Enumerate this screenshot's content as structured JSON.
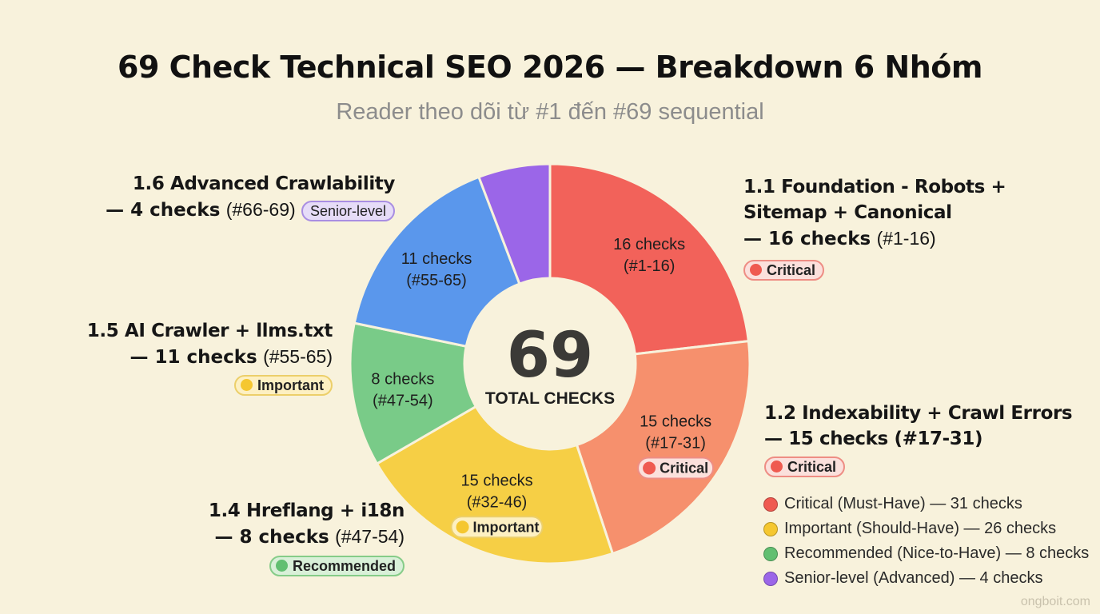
{
  "title": "69 Check Technical SEO 2026 — Breakdown 6 Nhóm",
  "subtitle": "Reader theo dõi từ #1 đến #69 sequential",
  "chart_data": {
    "type": "pie",
    "variant": "donut",
    "center_value": "69",
    "center_label": "TOTAL CHECKS",
    "slices": [
      {
        "id": "1.1",
        "value": 16,
        "label": "16 checks",
        "range": "(#1-16)",
        "color": "#f2625a"
      },
      {
        "id": "1.2",
        "value": 15,
        "label": "15 checks",
        "range": "(#17-31)",
        "color": "#f6906d",
        "badge": "Critical",
        "badge_level": "critical"
      },
      {
        "id": "1.3",
        "value": 15,
        "label": "15 checks",
        "range": "(#32-46)",
        "color": "#f6cf45",
        "badge": "Important",
        "badge_level": "important"
      },
      {
        "id": "1.4",
        "value": 8,
        "label": "8 checks",
        "range": "(#47-54)",
        "color": "#79cb88"
      },
      {
        "id": "1.5",
        "value": 11,
        "label": "11 checks",
        "range": "(#55-65)",
        "color": "#5a97ec"
      },
      {
        "id": "1.6",
        "value": 4,
        "label": "",
        "range": "",
        "color": "#9b66e8"
      }
    ]
  },
  "callouts": {
    "c11": {
      "head_l1": "1.1 Foundation - Robots +",
      "head_l2": "Sitemap + Canonical",
      "count": "— 16 checks",
      "range": "(#1-16)",
      "badge": "Critical"
    },
    "c12": {
      "head_l1": "1.2 Indexability + Crawl Errors",
      "count": "— 15 checks (#17-31)",
      "badge": "Critical"
    },
    "c14": {
      "head_l1": "1.4 Hreflang + i18n",
      "count": "— 8 checks",
      "range": "(#47-54)",
      "badge": "Recommended"
    },
    "c15": {
      "head_l1": "1.5 AI Crawler + llms.txt",
      "count": "— 11 checks",
      "range": "(#55-65)",
      "badge": "Important"
    },
    "c16": {
      "head_l1": "1.6 Advanced Crawlability",
      "count": "— 4 checks",
      "range": "(#66-69)",
      "badge": "Senior-level"
    }
  },
  "legend": [
    {
      "text": "Critical (Must-Have) — 31 checks",
      "color": "#ef5a50"
    },
    {
      "text": "Important (Should-Have) — 26 checks",
      "color": "#f5c730"
    },
    {
      "text": "Recommended (Nice-to-Have) — 8 checks",
      "color": "#62bf71"
    },
    {
      "text": "Senior-level (Advanced) — 4 checks",
      "color": "#9b66e8"
    }
  ],
  "watermark": "ongboit.com"
}
